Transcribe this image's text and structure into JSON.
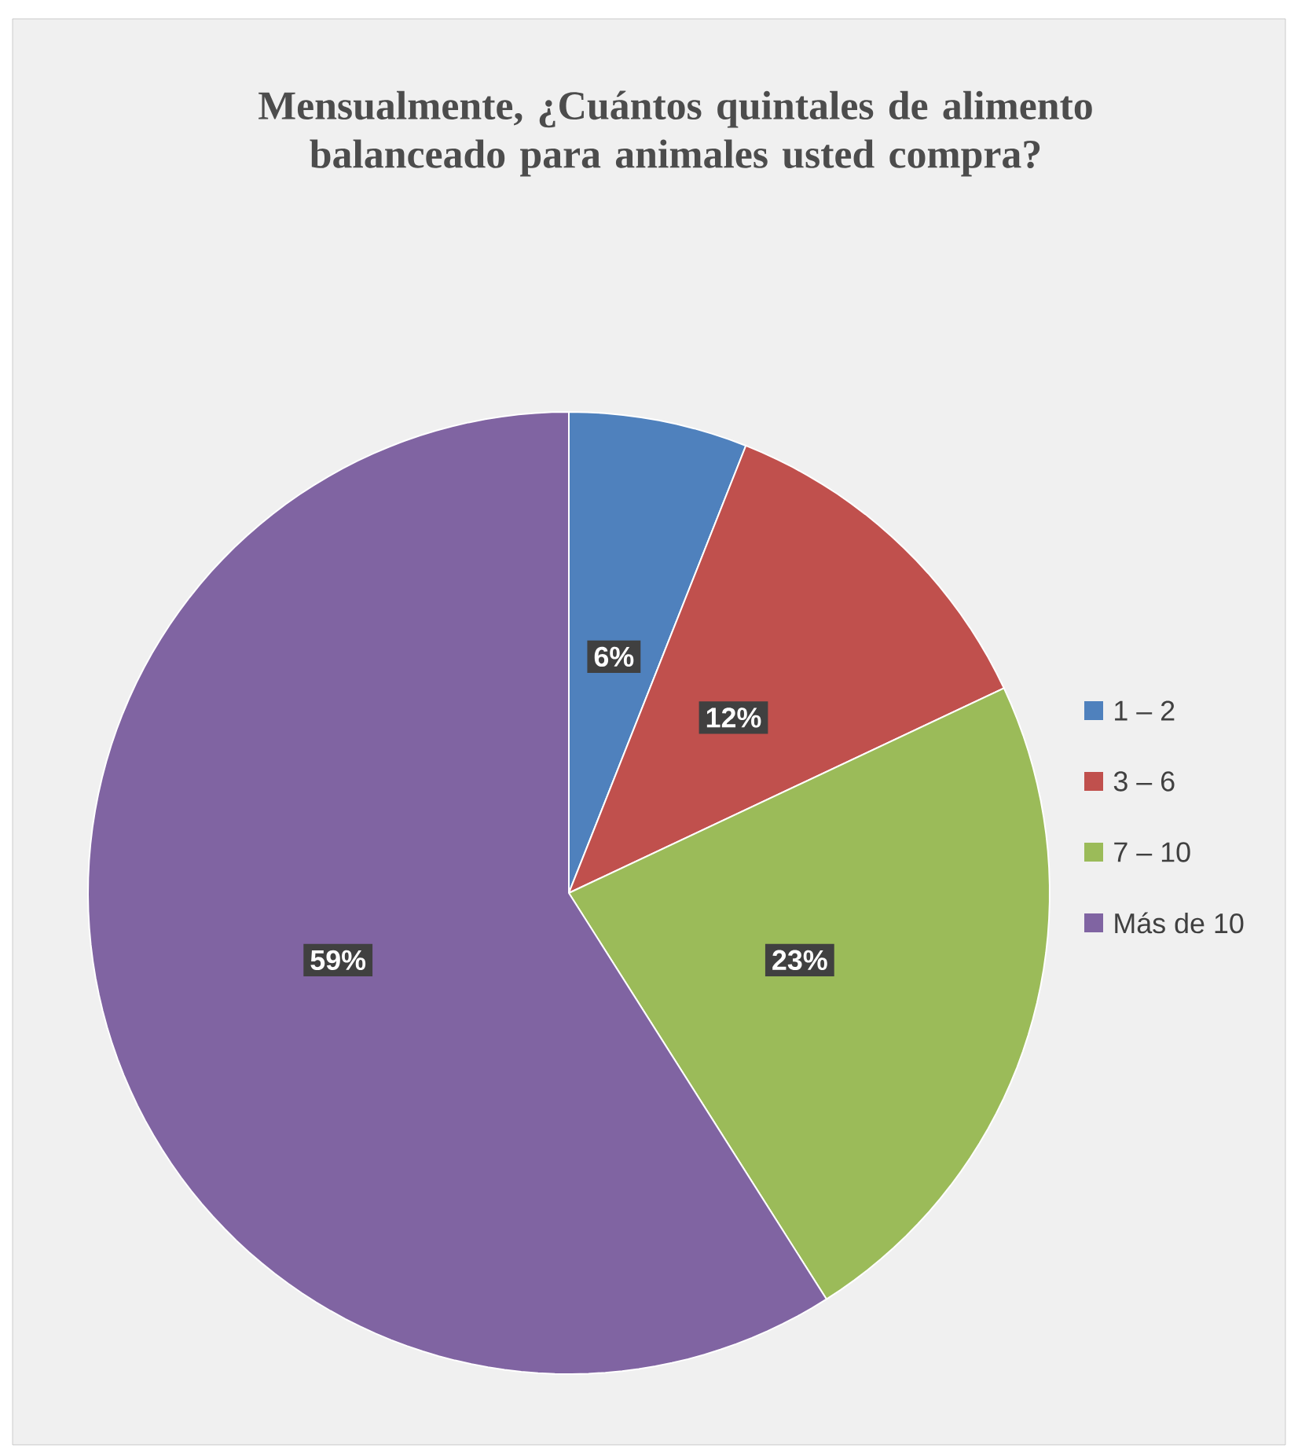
{
  "chart_data": {
    "type": "pie",
    "title": "Mensualmente, ¿Cuántos quintales de alimento balanceado para animales usted compra?",
    "categories": [
      "1 – 2",
      "3 – 6",
      "7 – 10",
      "Más de 10"
    ],
    "values": [
      6,
      12,
      23,
      59
    ],
    "colors": [
      "#4f81bd",
      "#c0504d",
      "#9bbb59",
      "#8064a2"
    ],
    "value_labels": [
      "6%",
      "12%",
      "23%",
      "59%"
    ],
    "legend": "right"
  }
}
